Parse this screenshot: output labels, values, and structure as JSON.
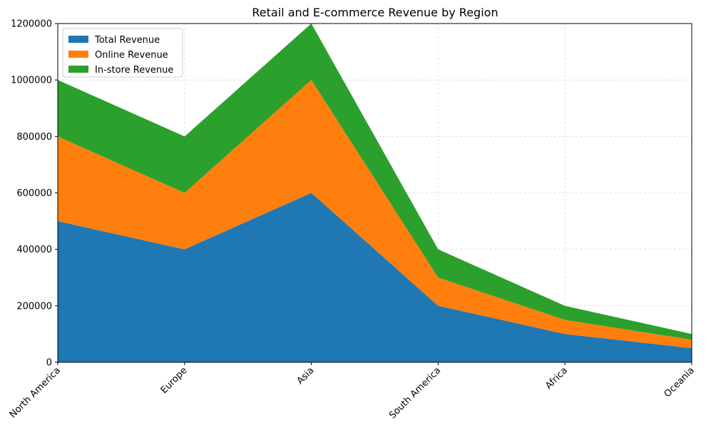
{
  "chart_data": {
    "type": "area",
    "stacked": true,
    "title": "Retail and E-commerce Revenue by Region",
    "xlabel": "",
    "ylabel": "",
    "categories": [
      "North America",
      "Europe",
      "Asia",
      "South America",
      "Africa",
      "Oceania"
    ],
    "series": [
      {
        "name": "Total Revenue",
        "values": [
          500000,
          400000,
          600000,
          200000,
          100000,
          50000
        ],
        "color": "#1f77b4"
      },
      {
        "name": "Online Revenue",
        "values": [
          300000,
          200000,
          400000,
          100000,
          50000,
          30000
        ],
        "color": "#ff7f0e"
      },
      {
        "name": "In-store Revenue",
        "values": [
          200000,
          200000,
          200000,
          100000,
          50000,
          20000
        ],
        "color": "#2ca02c"
      }
    ],
    "ylim": [
      0,
      1200000
    ],
    "yticks": [
      "0",
      "200000",
      "400000",
      "600000",
      "800000",
      "1000000",
      "1200000"
    ],
    "ytick_values": [
      0,
      200000,
      400000,
      600000,
      800000,
      1000000,
      1200000
    ],
    "grid": true,
    "legend_position": "upper-left",
    "xtick_rotation": "45deg"
  }
}
